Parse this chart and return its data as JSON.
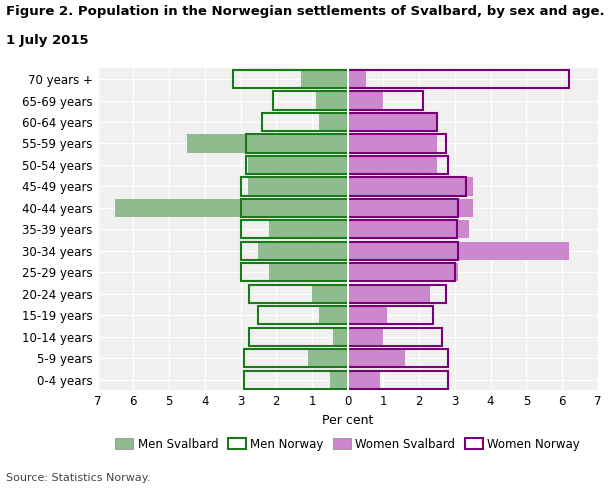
{
  "age_groups": [
    "0-4 years",
    "5-9 years",
    "10-14 years",
    "15-19 years",
    "20-24 years",
    "25-29 years",
    "30-34 years",
    "35-39 years",
    "40-44 years",
    "45-49 years",
    "50-54 years",
    "55-59 years",
    "60-64 years",
    "65-69 years",
    "70 years +"
  ],
  "men_svalbard": [
    0.5,
    1.1,
    0.4,
    0.8,
    1.0,
    2.2,
    2.5,
    2.2,
    6.5,
    2.8,
    2.8,
    4.5,
    0.8,
    0.9,
    1.3
  ],
  "men_norway": [
    2.9,
    2.9,
    2.75,
    2.5,
    2.75,
    3.0,
    3.0,
    3.0,
    3.0,
    3.0,
    2.85,
    2.85,
    2.4,
    2.1,
    3.2
  ],
  "women_svalbard": [
    0.9,
    1.6,
    1.0,
    1.1,
    2.3,
    3.1,
    6.2,
    3.4,
    3.5,
    3.5,
    2.5,
    2.5,
    2.5,
    1.0,
    0.5
  ],
  "women_norway": [
    2.8,
    2.8,
    2.65,
    2.4,
    2.75,
    3.0,
    3.1,
    3.05,
    3.1,
    3.3,
    2.8,
    2.75,
    2.5,
    2.1,
    6.2
  ],
  "color_men_svalbard": "#8fbc8f",
  "color_men_norway": "#1a7a1a",
  "color_women_svalbard": "#cc88cc",
  "color_women_norway": "#7a007a",
  "bg_color": "#f0f0f0",
  "grid_color": "#ffffff",
  "title_line1": "Figure 2. Population in the Norwegian settlements of Svalbard, by sex and age.",
  "title_line2": "1 July 2015",
  "xlabel": "Per cent",
  "xlim": 7,
  "source": "Source: Statistics Norway.",
  "legend_labels": [
    "Men Svalbard",
    "Men Norway",
    "Women Svalbard",
    "Women Norway"
  ]
}
